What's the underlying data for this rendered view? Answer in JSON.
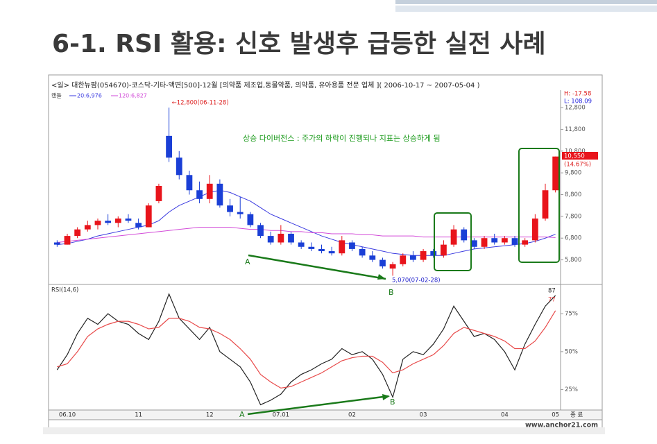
{
  "title": "6-1. RSI 활용: 신호 발생후 급등한 실전 사례",
  "chart_data": [
    {
      "type": "candlestick",
      "title": "<일> 대한뉴팜(054670)-코스닥-기타-액면[500]-12월 [의약품 제조업,동물약품, 의약품, 유아용품 전문 업체 ]( 2006-10-17 ~ 2007-05-04 )",
      "candle_name": "캔들",
      "up_color": "#e8141b",
      "down_color": "#1a3fd6",
      "open": [
        6600,
        6500,
        6900,
        7200,
        7400,
        7600,
        7500,
        7700,
        7500,
        7300,
        8500,
        11500,
        10500,
        9700,
        9000,
        8600,
        9300,
        8300,
        8000,
        7900,
        7400,
        6900,
        6600,
        7000,
        6600,
        6400,
        6300,
        6200,
        6100,
        6600,
        6300,
        6000,
        5800,
        5400,
        5600,
        6000,
        5800,
        6200,
        6000,
        6500,
        7200,
        6700,
        6400,
        6800,
        6600,
        6800,
        6500,
        6700,
        7700,
        9000
      ],
      "high": [
        6700,
        7000,
        7300,
        7600,
        7700,
        7900,
        7800,
        7900,
        7700,
        8400,
        9300,
        12800,
        10800,
        9900,
        9400,
        9700,
        9500,
        8600,
        8700,
        8000,
        7500,
        7100,
        7400,
        7100,
        6700,
        6600,
        6500,
        6400,
        6900,
        6700,
        6400,
        6200,
        5900,
        5700,
        6100,
        6200,
        6300,
        6300,
        6700,
        7400,
        7300,
        6800,
        6900,
        7000,
        6900,
        6900,
        6800,
        7900,
        9300,
        10550
      ],
      "low": [
        6400,
        6500,
        6800,
        7100,
        7200,
        7400,
        7300,
        7500,
        7200,
        7300,
        8400,
        10300,
        9500,
        8800,
        8400,
        8400,
        8200,
        7800,
        7700,
        7300,
        6800,
        6500,
        6500,
        6500,
        6300,
        6200,
        6100,
        6000,
        6000,
        6200,
        5900,
        5700,
        5400,
        5070,
        5500,
        5700,
        5700,
        5900,
        5900,
        6400,
        6600,
        6300,
        6300,
        6500,
        6500,
        6400,
        6400,
        6600,
        7600,
        8900
      ],
      "close": [
        6500,
        6900,
        7200,
        7400,
        7600,
        7500,
        7700,
        7600,
        7300,
        8300,
        9200,
        10500,
        9700,
        9000,
        8600,
        9300,
        8300,
        8000,
        7900,
        7400,
        6900,
        6600,
        7000,
        6600,
        6400,
        6300,
        6200,
        6100,
        6700,
        6300,
        6000,
        5800,
        5500,
        5600,
        6000,
        5800,
        6200,
        6000,
        6500,
        7200,
        6700,
        6400,
        6800,
        6600,
        6800,
        6500,
        6700,
        7700,
        9000,
        10550
      ],
      "series": [
        {
          "name": "20:6,976",
          "color": "#3a3ae0",
          "values": [
            6500,
            6550,
            6650,
            6750,
            6900,
            7000,
            7100,
            7200,
            7300,
            7400,
            7600,
            8000,
            8300,
            8500,
            8700,
            8900,
            9000,
            8900,
            8700,
            8500,
            8200,
            7900,
            7700,
            7500,
            7300,
            7100,
            6900,
            6750,
            6600,
            6500,
            6400,
            6300,
            6200,
            6100,
            6050,
            6000,
            6000,
            6000,
            6000,
            6100,
            6200,
            6300,
            6350,
            6400,
            6450,
            6500,
            6550,
            6650,
            6800,
            6976
          ]
        },
        {
          "name": "120:6,827",
          "color": "#d24ad8",
          "values": [
            6600,
            6650,
            6700,
            6750,
            6800,
            6850,
            6900,
            6950,
            7000,
            7050,
            7100,
            7150,
            7200,
            7250,
            7300,
            7300,
            7300,
            7300,
            7250,
            7200,
            7200,
            7150,
            7150,
            7100,
            7100,
            7050,
            7050,
            7000,
            7000,
            7000,
            6950,
            6950,
            6900,
            6900,
            6900,
            6900,
            6850,
            6850,
            6850,
            6850,
            6850,
            6850,
            6850,
            6850,
            6850,
            6850,
            6850,
            6850,
            6850,
            6827
          ]
        }
      ],
      "ylim": [
        4830,
        13600
      ],
      "yticks": [
        {
          "value": 5800,
          "label": "5,800"
        },
        {
          "value": 6800,
          "label": "6,800"
        },
        {
          "value": 7800,
          "label": "7,800"
        },
        {
          "value": 8800,
          "label": "8,800"
        },
        {
          "value": 9800,
          "label": "9,800"
        },
        {
          "value": 10800,
          "label": "10,800"
        },
        {
          "value": 11800,
          "label": "11,800"
        },
        {
          "value": 12800,
          "label": "12,800"
        }
      ],
      "high_label": "H: -17.58",
      "low_label": "L: 108.09",
      "annotations": [
        "←12,800(06-11-28)",
        "상승 다이버전스 : 주가의 하락이 진행되나 지표는 상승하게 됨",
        "A",
        "B",
        "5,070(07-02-28)",
        "10,550",
        "(14.67%)"
      ]
    },
    {
      "type": "line",
      "title": "RSI(14,6)",
      "categories": [
        null,
        "06.10",
        null,
        null,
        null,
        null,
        null,
        null,
        "11",
        null,
        null,
        null,
        null,
        null,
        null,
        "12",
        null,
        null,
        null,
        null,
        null,
        null,
        "07.01",
        null,
        null,
        null,
        null,
        null,
        null,
        "02",
        null,
        null,
        null,
        null,
        null,
        null,
        "03",
        null,
        null,
        null,
        null,
        null,
        null,
        null,
        "04",
        null,
        null,
        null,
        null,
        "05"
      ],
      "series": [
        {
          "name": "RSI",
          "color": "#222222",
          "values": [
            38,
            48,
            62,
            72,
            68,
            75,
            70,
            68,
            62,
            58,
            70,
            88,
            72,
            65,
            58,
            66,
            50,
            45,
            40,
            30,
            15,
            18,
            22,
            30,
            35,
            38,
            42,
            45,
            52,
            48,
            50,
            45,
            35,
            20,
            45,
            50,
            48,
            55,
            65,
            80,
            70,
            60,
            62,
            58,
            50,
            38,
            55,
            68,
            80,
            87
          ]
        },
        {
          "name": "Signal",
          "color": "#e84a4a",
          "values": [
            40,
            42,
            50,
            60,
            65,
            68,
            70,
            70,
            68,
            65,
            66,
            72,
            72,
            70,
            66,
            65,
            62,
            58,
            52,
            45,
            35,
            30,
            26,
            27,
            30,
            33,
            36,
            40,
            44,
            46,
            47,
            47,
            43,
            36,
            38,
            42,
            45,
            48,
            54,
            62,
            66,
            64,
            62,
            60,
            57,
            52,
            52,
            57,
            66,
            77
          ]
        }
      ],
      "ylim": [
        12,
        92
      ],
      "yticks": [
        {
          "value": 25,
          "label": "25%"
        },
        {
          "value": 50,
          "label": "50%"
        },
        {
          "value": 75,
          "label": "75%"
        }
      ],
      "annotations": [
        "A",
        "B"
      ],
      "end_label": "종 료",
      "footer": "www.anchor21.com"
    }
  ]
}
